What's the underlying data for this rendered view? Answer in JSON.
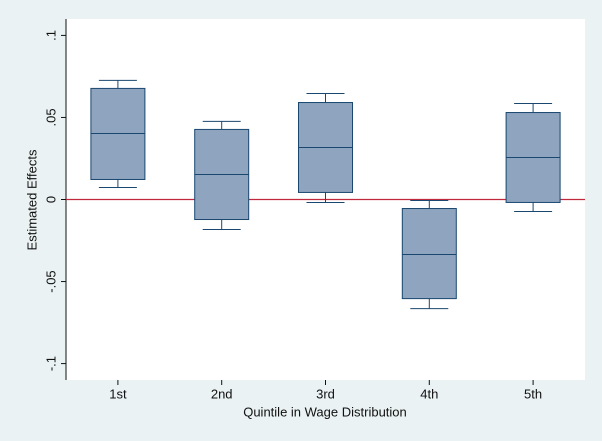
{
  "chart_data": {
    "type": "box",
    "x_label": "Quintile in Wage Distribution",
    "y_label": "Estimated Effects",
    "categories": [
      "1st",
      "2nd",
      "3rd",
      "4th",
      "5th"
    ],
    "boxes": [
      {
        "low": 0.0073,
        "q1": 0.0122,
        "median": 0.0402,
        "q3": 0.0677,
        "high": 0.0726
      },
      {
        "low": -0.0183,
        "q1": -0.0122,
        "median": 0.0152,
        "q3": 0.0427,
        "high": 0.0476
      },
      {
        "low": -0.0018,
        "q1": 0.0043,
        "median": 0.0317,
        "q3": 0.0591,
        "high": 0.0646
      },
      {
        "low": -0.0665,
        "q1": -0.0604,
        "median": -0.0335,
        "q3": -0.0055,
        "high": -0.0006
      },
      {
        "low": -0.0073,
        "q1": -0.0018,
        "median": 0.0256,
        "q3": 0.053,
        "high": 0.0585
      }
    ],
    "color": "#8ea4bf",
    "edge_color": "#1a476f",
    "ylim": [
      -0.11,
      0.11
    ],
    "yticks": [
      {
        "value": -0.1,
        "label": "-.1"
      },
      {
        "value": -0.05,
        "label": "-.05"
      },
      0,
      {
        "value": 0.05,
        "label": ".05"
      },
      {
        "value": 0.1,
        "label": ".1"
      }
    ],
    "reference_line": 0,
    "reference_color": "#c0283c"
  }
}
